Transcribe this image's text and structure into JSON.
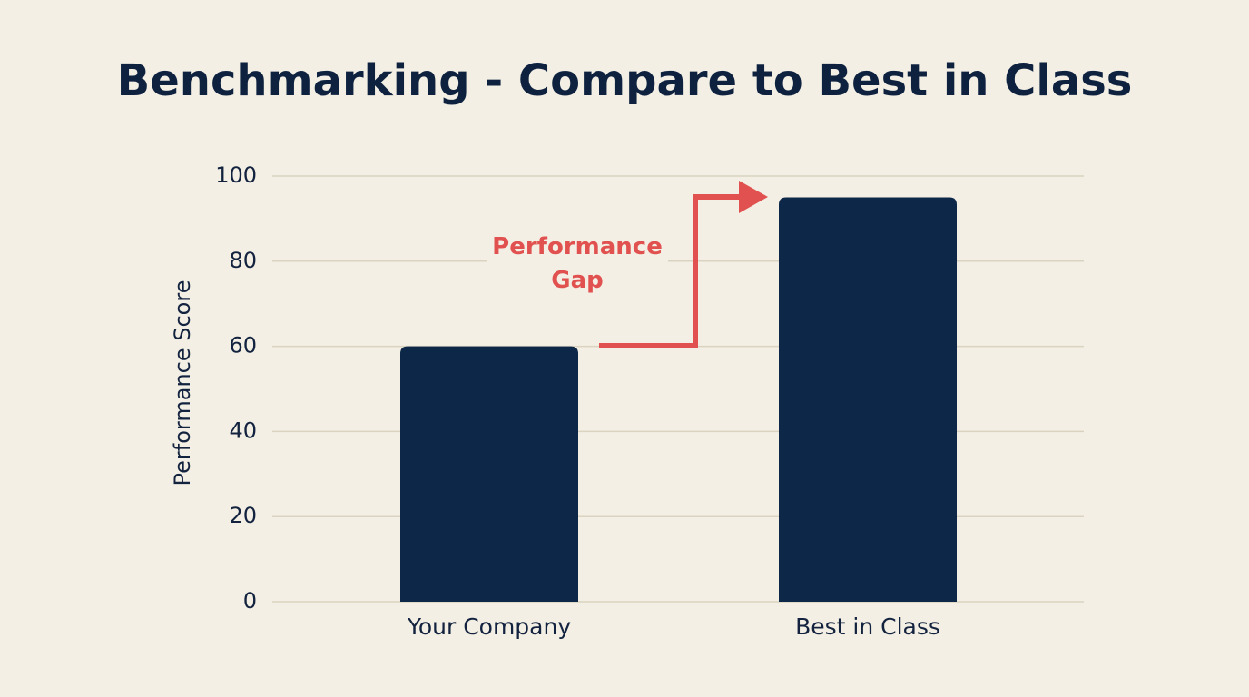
{
  "chart_data": {
    "type": "bar",
    "title": "Benchmarking - Compare to Best in Class",
    "y_label": "Performance Score",
    "categories": [
      "Your Company",
      "Best in Class"
    ],
    "values": [
      60,
      95
    ],
    "color": "#0c2748",
    "ylim": [
      0,
      100
    ],
    "yticks": [
      0,
      20,
      40,
      60,
      80,
      100
    ],
    "grid": true,
    "annotation": "Performance Gap",
    "annotation_color": "#e0514f"
  }
}
